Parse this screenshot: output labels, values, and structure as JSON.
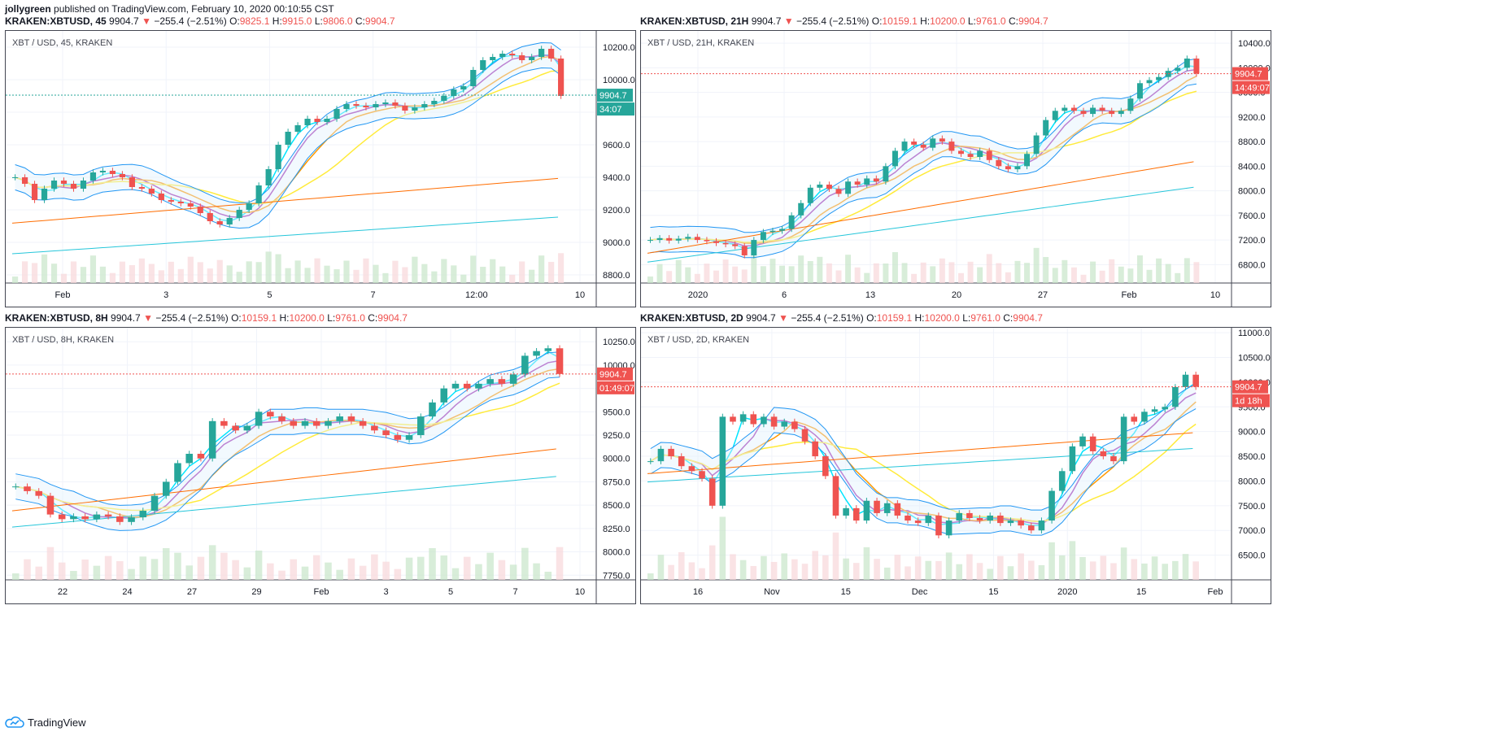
{
  "header": {
    "author": "jollygreen",
    "published_text": "published on TradingView.com, February 10, 2020 00:10:55 CST"
  },
  "footer": {
    "brand": "TradingView"
  },
  "colors": {
    "up": "#26a69a",
    "down": "#ef5350",
    "cyan": "#00e5ff",
    "purple": "#9c27b0",
    "orange": "#ff9800",
    "yellow": "#ffeb3b",
    "blue": "#2196f3",
    "ema200": "#ff6d00",
    "teal": "#26c6da"
  },
  "panels": [
    {
      "symbol": "KRAKEN:XBTUSD, 45",
      "last": "9904.7",
      "change": "−255.4 (−2.51%)",
      "o_label": "O:",
      "o": "9825.1",
      "h_label": "H:",
      "h": "9915.0",
      "l_label": "L:",
      "l": "9806.0",
      "c_label": "C:",
      "c": "9904.7",
      "title": "XBT / USD, 45, KRAKEN",
      "price_tag": "9904.7",
      "countdown": "34:07",
      "chart_data": {
        "type": "candlestick",
        "title": "XBT / USD, 45, KRAKEN",
        "ylim": [
          8750,
          10300
        ],
        "y_ticks": [
          "10200.0",
          "10000.0",
          "9800.0",
          "9600.0",
          "9400.0",
          "9200.0",
          "9000.0",
          "8800.0"
        ],
        "x_ticks": [
          "Feb",
          "3",
          "5",
          "7",
          "12:00",
          "10"
        ],
        "last_price": 9904.7,
        "close_series": [
          9400,
          9360,
          9260,
          9330,
          9380,
          9360,
          9330,
          9380,
          9430,
          9440,
          9420,
          9400,
          9340,
          9330,
          9300,
          9260,
          9250,
          9240,
          9220,
          9180,
          9130,
          9110,
          9150,
          9200,
          9240,
          9350,
          9450,
          9600,
          9680,
          9720,
          9760,
          9740,
          9760,
          9820,
          9850,
          9840,
          9830,
          9850,
          9860,
          9840,
          9810,
          9830,
          9850,
          9870,
          9900,
          9940,
          9960,
          10060,
          10120,
          10140,
          10160,
          10150,
          10120,
          10140,
          10190,
          10130,
          9900
        ]
      }
    },
    {
      "symbol": "KRAKEN:XBTUSD, 21H",
      "last": "9904.7",
      "change": "−255.4 (−2.51%)",
      "o_label": "O:",
      "o": "10159.1",
      "h_label": "H:",
      "h": "10200.0",
      "l_label": "L:",
      "l": "9761.0",
      "c_label": "C:",
      "c": "9904.7",
      "title": "XBT / USD, 21H, KRAKEN",
      "price_tag": "9904.7",
      "countdown": "14:49:07",
      "chart_data": {
        "type": "candlestick",
        "title": "XBT / USD, 21H, KRAKEN",
        "ylim": [
          6500,
          10600
        ],
        "y_ticks": [
          "10400.0",
          "10000.0",
          "9600.0",
          "9200.0",
          "8800.0",
          "8400.0",
          "8000.0",
          "7600.0",
          "7200.0",
          "6800.0"
        ],
        "x_ticks": [
          "2020",
          "6",
          "13",
          "20",
          "27",
          "Feb",
          "10"
        ],
        "last_price": 9904.7,
        "close_series": [
          7200,
          7230,
          7190,
          7220,
          7250,
          7200,
          7180,
          7150,
          7130,
          7100,
          6950,
          7200,
          7330,
          7350,
          7380,
          7600,
          7800,
          8050,
          8100,
          8030,
          7950,
          8150,
          8100,
          8200,
          8150,
          8400,
          8650,
          8800,
          8750,
          8700,
          8850,
          8800,
          8650,
          8600,
          8550,
          8650,
          8500,
          8400,
          8350,
          8400,
          8600,
          8900,
          9150,
          9300,
          9350,
          9300,
          9250,
          9350,
          9300,
          9250,
          9300,
          9500,
          9750,
          9800,
          9850,
          9950,
          10000,
          10150,
          9905
        ]
      }
    },
    {
      "symbol": "KRAKEN:XBTUSD, 8H",
      "last": "9904.7",
      "change": "−255.4 (−2.51%)",
      "o_label": "O:",
      "o": "10159.1",
      "h_label": "H:",
      "h": "10200.0",
      "l_label": "L:",
      "l": "9761.0",
      "c_label": "C:",
      "c": "9904.7",
      "title": "XBT / USD, 8H, KRAKEN",
      "price_tag": "9904.7",
      "countdown": "01:49:07",
      "chart_data": {
        "type": "candlestick",
        "title": "XBT / USD, 8H, KRAKEN",
        "ylim": [
          7700,
          10400
        ],
        "y_ticks": [
          "10250.0",
          "10000.0",
          "9750.0",
          "9500.0",
          "9250.0",
          "9000.0",
          "8750.0",
          "8500.0",
          "8250.0",
          "8000.0",
          "7750.0"
        ],
        "x_ticks": [
          "22",
          "24",
          "27",
          "29",
          "Feb",
          "3",
          "5",
          "7",
          "10"
        ],
        "last_price": 9904.7,
        "close_series": [
          8700,
          8650,
          8600,
          8400,
          8350,
          8380,
          8350,
          8400,
          8380,
          8320,
          8370,
          8440,
          8600,
          8750,
          8950,
          9050,
          9000,
          9400,
          9350,
          9300,
          9350,
          9500,
          9450,
          9400,
          9350,
          9400,
          9350,
          9400,
          9450,
          9400,
          9350,
          9300,
          9250,
          9200,
          9250,
          9450,
          9600,
          9750,
          9800,
          9750,
          9800,
          9850,
          9800,
          9900,
          10100,
          10150,
          10180,
          9905
        ]
      }
    },
    {
      "symbol": "KRAKEN:XBTUSD, 2D",
      "last": "9904.7",
      "change": "−255.4 (−2.51%)",
      "o_label": "O:",
      "o": "10159.1",
      "h_label": "H:",
      "h": "10200.0",
      "l_label": "L:",
      "l": "9761.0",
      "c_label": "C:",
      "c": "9904.7",
      "title": "XBT / USD, 2D, KRAKEN",
      "price_tag": "9904.7",
      "countdown": "1d 18h",
      "chart_data": {
        "type": "candlestick",
        "title": "XBT / USD, 2D, KRAKEN",
        "ylim": [
          6000,
          11100
        ],
        "y_ticks": [
          "11000.0",
          "10500.0",
          "10000.0",
          "9500.0",
          "9000.0",
          "8500.0",
          "8000.0",
          "7500.0",
          "7000.0",
          "6500.0"
        ],
        "x_ticks": [
          "16",
          "Nov",
          "15",
          "Dec",
          "15",
          "2020",
          "15",
          "Feb"
        ],
        "last_price": 9904.7,
        "close_series": [
          8400,
          8650,
          8500,
          8300,
          8200,
          8050,
          7500,
          9300,
          9200,
          9350,
          9150,
          9300,
          9100,
          9200,
          9050,
          8800,
          8500,
          8100,
          7300,
          7450,
          7200,
          7600,
          7350,
          7550,
          7300,
          7200,
          7150,
          7300,
          6900,
          7200,
          7350,
          7250,
          7200,
          7300,
          7150,
          7200,
          7100,
          7000,
          7200,
          7800,
          8200,
          8700,
          8900,
          8600,
          8500,
          8400,
          9300,
          9200,
          9400,
          9450,
          9500,
          9900,
          10150,
          9905
        ]
      }
    }
  ]
}
